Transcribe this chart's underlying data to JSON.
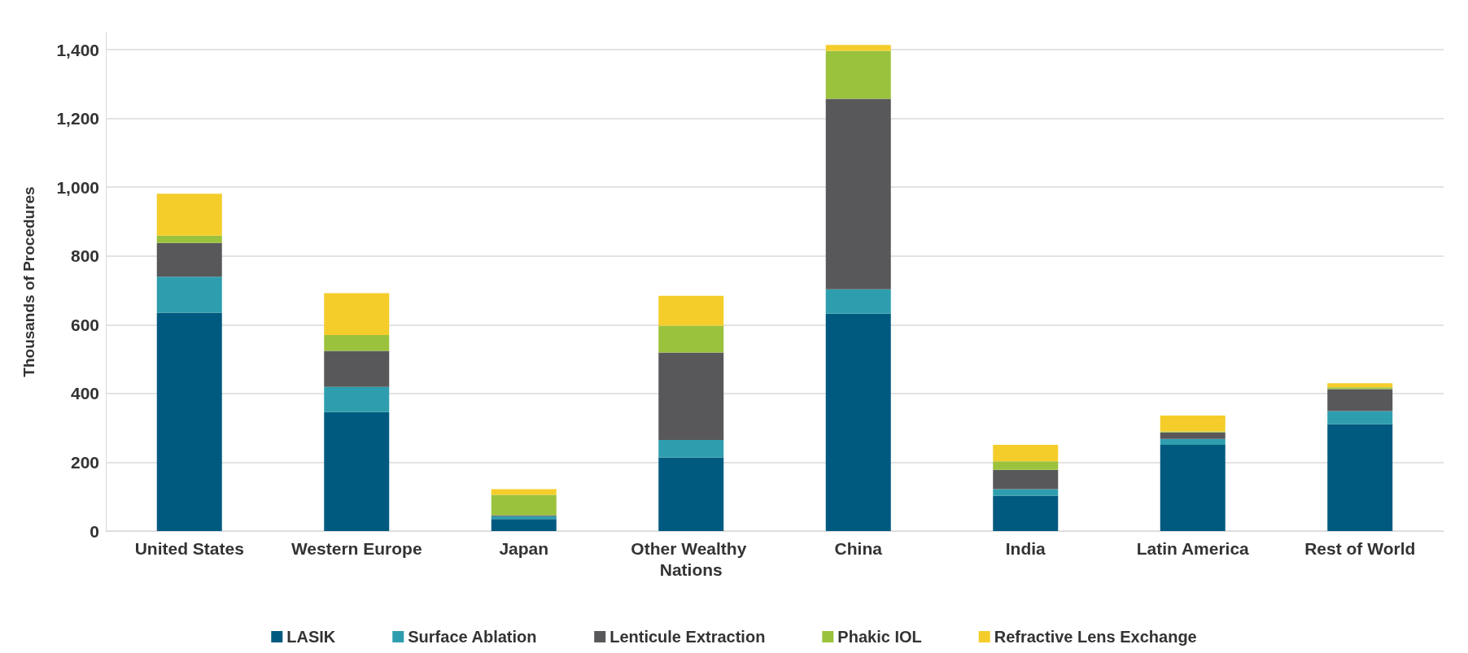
{
  "chart_data": {
    "type": "bar",
    "stacked": true,
    "ylabel": "Thousands of Procedures",
    "categories": [
      "United States",
      "Western Europe",
      "Japan",
      "Other Wealthy Nations",
      "China",
      "India",
      "Latin America",
      "Rest of World"
    ],
    "series": [
      {
        "name": "LASIK",
        "color": "#005a80",
        "values": [
          635,
          346,
          35,
          214,
          632,
          103,
          251,
          311
        ]
      },
      {
        "name": "Surface Ablation",
        "color": "#2e9eae",
        "values": [
          105,
          73,
          8,
          51,
          71,
          19,
          17,
          38
        ]
      },
      {
        "name": "Lenticule Extraction",
        "color": "#58585a",
        "values": [
          98,
          105,
          3,
          254,
          554,
          56,
          19,
          64
        ]
      },
      {
        "name": "Phakic IOL",
        "color": "#9bc23c",
        "values": [
          21,
          46,
          59,
          78,
          140,
          25,
          3,
          5
        ]
      },
      {
        "name": "Refractive Lens Exchange",
        "color": "#f5cd2a",
        "values": [
          122,
          122,
          17,
          87,
          17,
          48,
          46,
          12
        ]
      }
    ],
    "ylim": [
      0,
      1450
    ],
    "yticks": [
      0,
      200,
      400,
      600,
      800,
      {
        "value": 1000,
        "label": "1,000"
      },
      {
        "value": 1200,
        "label": "1,200"
      },
      {
        "value": 1400,
        "label": "1,400"
      }
    ],
    "grid": "y",
    "legend": "bottom"
  }
}
